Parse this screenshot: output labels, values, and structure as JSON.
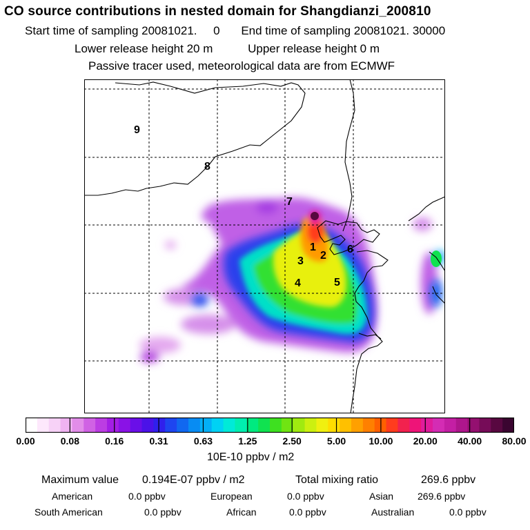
{
  "header": {
    "title": "CO  source contributions in nested domain for Shangdianzi_200810",
    "start_label": "Start time of sampling",
    "start_value": "20081021.     0",
    "end_label": "End time of sampling",
    "end_value": "20081021. 30000",
    "lower_label": "Lower release height",
    "lower_value": "20 m",
    "upper_label": "Upper release height",
    "upper_value": "0 m",
    "note": "Passive tracer used, meteorological data are from ECMWF"
  },
  "map": {
    "region_labels": [
      "1",
      "2",
      "3",
      "4",
      "5",
      "6",
      "7",
      "8",
      "9"
    ]
  },
  "colorbar": {
    "ticks": [
      "0.00",
      "0.08",
      "0.16",
      "0.31",
      "0.63",
      "1.25",
      "2.50",
      "5.00",
      "10.00",
      "20.00",
      "40.00",
      "80.00"
    ],
    "colors": [
      "#ffffff",
      "#fde8fc",
      "#f7d2f7",
      "#f0b3f2",
      "#e28de9",
      "#d062e4",
      "#bc3de3",
      "#a41ee5",
      "#8a12e6",
      "#6a0fe8",
      "#4b12e8",
      "#3020ec",
      "#1e45f0",
      "#1168f0",
      "#088cf3",
      "#03aff6",
      "#00d2f4",
      "#00ead8",
      "#00eeb0",
      "#00ea80",
      "#10e250",
      "#3ee020",
      "#70e412",
      "#a0ea10",
      "#ccf010",
      "#f0f010",
      "#ffdd00",
      "#ffc000",
      "#ffa000",
      "#ff8000",
      "#ff6000",
      "#ff3c1e",
      "#f2224e",
      "#ee1478",
      "#e01c9c",
      "#d42cb4",
      "#c41fa4",
      "#ae168c",
      "#941070",
      "#760c58",
      "#580840",
      "#3a0530"
    ],
    "unit_label": "10E-10 ppbv / m2"
  },
  "stats": {
    "max_label": "Maximum value",
    "max_value": "0.194E-07 ppbv / m2",
    "total_label": "Total mixing ratio",
    "total_value": "269.6 ppbv",
    "american_label": "American",
    "american_value": "0.0 ppbv",
    "european_label": "European",
    "european_value": "0.0 ppbv",
    "asian_label": "Asian",
    "asian_value": "269.6 ppbv",
    "south_american_label": "South American",
    "south_american_value": "0.0 ppbv",
    "african_label": "African",
    "african_value": "0.0 ppbv",
    "australian_label": "Australian",
    "australian_value": "0.0 ppbv"
  }
}
